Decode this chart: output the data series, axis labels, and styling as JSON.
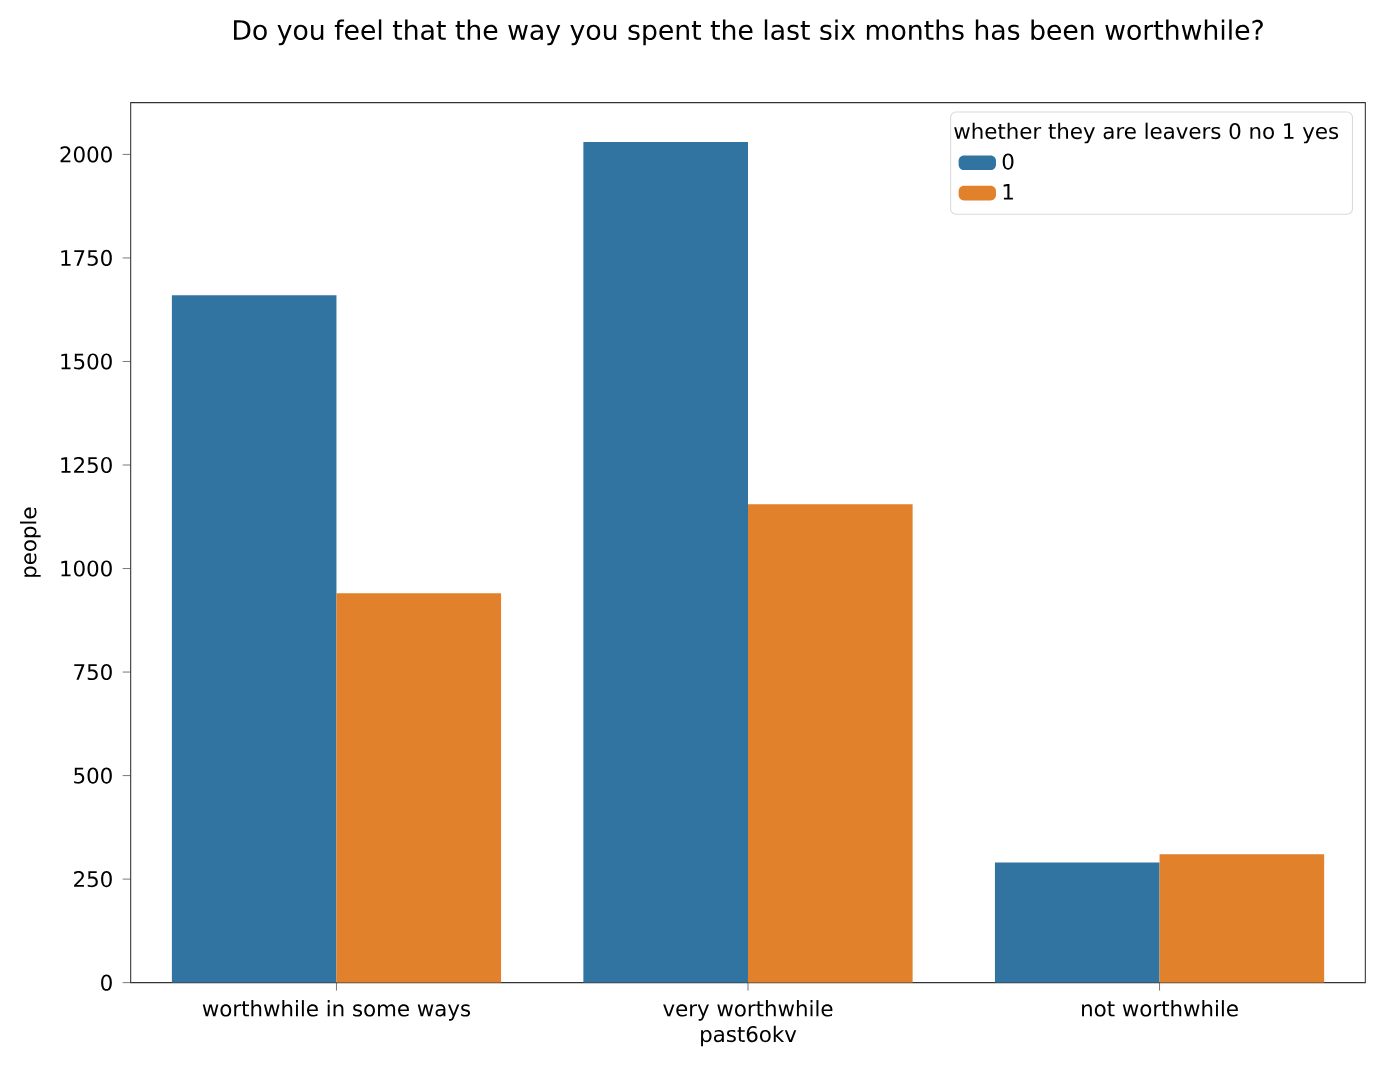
{
  "chart_data": {
    "type": "bar",
    "title": "Do you feel that the way you spent the last six months has been worthwhile?",
    "xlabel": "past6okv",
    "ylabel": "people",
    "legend_title": "whether they are leavers 0 no 1 yes",
    "categories": [
      "worthwhile in some ways",
      "very worthwhile",
      "not worthwhile"
    ],
    "series": [
      {
        "name": "0",
        "color": "#3274a1",
        "values": [
          1660,
          2030,
          290
        ]
      },
      {
        "name": "1",
        "color": "#e1812c",
        "values": [
          940,
          1155,
          310
        ]
      }
    ],
    "ylim": [
      0,
      2125
    ],
    "yticks": [
      0,
      250,
      500,
      750,
      1000,
      1250,
      1500,
      1750,
      2000
    ],
    "grid": false,
    "legend": "top right"
  }
}
